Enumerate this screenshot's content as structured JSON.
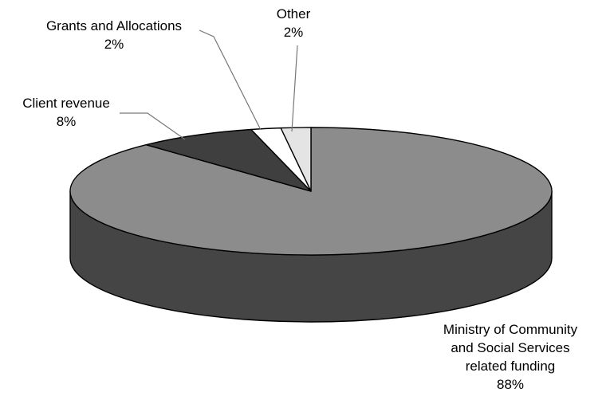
{
  "chart_data": {
    "type": "pie",
    "style": "3d",
    "title": "",
    "categories": [
      "Ministry of Community and Social Services related funding",
      "Client revenue",
      "Grants and Allocations",
      "Other"
    ],
    "values": [
      88,
      8,
      2,
      2
    ],
    "slices": [
      {
        "key": "ministry",
        "label_lines": [
          "Ministry of Community",
          "and Social Services",
          "related funding"
        ],
        "percent_label": "88%",
        "value": 88,
        "color": "#8c8c8c",
        "side_color": "#454545"
      },
      {
        "key": "client-revenue",
        "label_lines": [
          "Client revenue"
        ],
        "percent_label": "8%",
        "value": 8,
        "color": "#3f3f3f",
        "side_color": "#2e2e2e"
      },
      {
        "key": "grants-allocations",
        "label_lines": [
          "Grants and Allocations"
        ],
        "percent_label": "2%",
        "value": 2,
        "color": "#ffffff",
        "side_color": "#dddddd"
      },
      {
        "key": "other",
        "label_lines": [
          "Other"
        ],
        "percent_label": "2%",
        "value": 2,
        "color": "#e4e4e4",
        "side_color": "#c6c6c6"
      }
    ],
    "legend": "none",
    "outline_color": "#000000",
    "leader_line_color": "#777777"
  }
}
